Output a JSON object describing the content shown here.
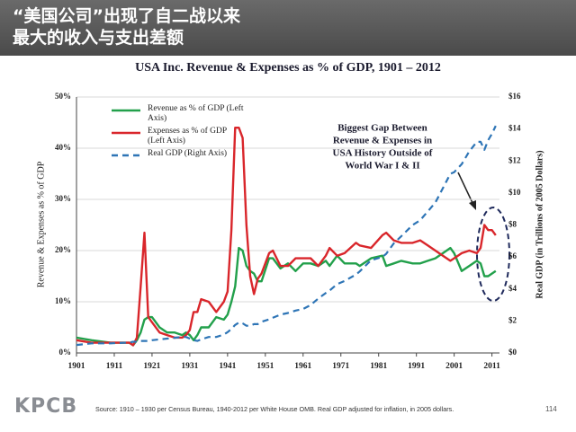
{
  "header": {
    "title_lines": [
      "“美国公司”出现了自二战以来",
      "最大的收入与支出差额"
    ]
  },
  "chart_data": {
    "type": "line",
    "title": "USA Inc. Revenue & Expenses as % of GDP, 1901 – 2012",
    "y_label": "Revenue & Expenses as % of GDP",
    "y2_label": "Real GDP (in Trillions of 2005 Dollars)",
    "annotation_lines": [
      "Biggest Gap Between",
      "Revenue & Expenses in",
      "USA History Outside of",
      "World War I & II"
    ],
    "x": [
      1901,
      1905,
      1910,
      1915,
      1916,
      1917,
      1918,
      1919,
      1920,
      1921,
      1923,
      1925,
      1927,
      1929,
      1930,
      1931,
      1932,
      1933,
      1934,
      1936,
      1938,
      1940,
      1941,
      1942,
      1943,
      1944,
      1945,
      1946,
      1947,
      1948,
      1949,
      1950,
      1952,
      1953,
      1955,
      1957,
      1959,
      1961,
      1963,
      1965,
      1967,
      1968,
      1970,
      1972,
      1975,
      1976,
      1979,
      1982,
      1983,
      1985,
      1987,
      1990,
      1992,
      1994,
      1996,
      1998,
      2000,
      2001,
      2003,
      2005,
      2007,
      2008,
      2009,
      2010,
      2011,
      2012
    ],
    "series": [
      {
        "name": "Revenue as % of GDP (Left Axis)",
        "color": "#22a04b",
        "axis": "y",
        "dashed": false,
        "values": [
          3,
          2.5,
          2,
          2,
          1.5,
          2.5,
          4,
          6.5,
          7,
          7,
          5,
          4,
          4,
          3.5,
          4,
          3.5,
          2.5,
          3.5,
          5,
          5,
          7,
          6.5,
          7.5,
          10,
          13,
          20.5,
          20,
          17,
          16,
          15.5,
          14,
          14,
          18.5,
          18.5,
          16.5,
          17.5,
          16,
          17.5,
          17.5,
          17,
          18,
          17,
          19,
          17.5,
          17.5,
          17,
          18.5,
          19,
          17,
          17.5,
          18,
          17.5,
          17.5,
          18,
          18.5,
          19.5,
          20.5,
          19.5,
          16,
          17,
          18,
          17.5,
          15,
          15,
          15.5,
          16
        ]
      },
      {
        "name": "Expenses as % of GDP (Left Axis)",
        "color": "#d9262b",
        "axis": "y",
        "dashed": false,
        "values": [
          2.5,
          2,
          2,
          2,
          1.5,
          3,
          13,
          23.5,
          7,
          6,
          4,
          3.5,
          3,
          3,
          3.5,
          4.5,
          8,
          8,
          10.5,
          10,
          8,
          10,
          12,
          24,
          44,
          44,
          42,
          25,
          15,
          11.5,
          14.5,
          15.5,
          19.5,
          20,
          17,
          17,
          18.5,
          18.5,
          18.5,
          17,
          19,
          20.5,
          19,
          19.5,
          21.5,
          21,
          20.5,
          23,
          23.5,
          22,
          21.5,
          21.5,
          22,
          21,
          20,
          19,
          18,
          18.5,
          19.5,
          20,
          19.5,
          20.5,
          25,
          24,
          24,
          23
        ]
      },
      {
        "name": "Real GDP (Right Axis)",
        "color": "#2e75b6",
        "axis": "y2",
        "dashed": true,
        "values": [
          0.5,
          0.6,
          0.6,
          0.65,
          0.7,
          0.7,
          0.75,
          0.75,
          0.75,
          0.8,
          0.85,
          0.9,
          0.95,
          1.0,
          1.0,
          0.9,
          0.8,
          0.75,
          0.85,
          1.0,
          1.0,
          1.15,
          1.3,
          1.5,
          1.75,
          1.9,
          1.85,
          1.7,
          1.7,
          1.8,
          1.8,
          1.95,
          2.1,
          2.2,
          2.4,
          2.5,
          2.65,
          2.75,
          3.0,
          3.4,
          3.75,
          3.9,
          4.3,
          4.5,
          4.9,
          5.1,
          5.8,
          6.0,
          6.2,
          6.85,
          7.3,
          8.0,
          8.3,
          8.85,
          9.4,
          10.3,
          11.2,
          11.3,
          11.8,
          12.6,
          13.2,
          13.2,
          12.7,
          13.3,
          13.7,
          14.2
        ]
      }
    ],
    "xlim": [
      1901,
      2013
    ],
    "xticks": [
      1901,
      1911,
      1921,
      1931,
      1941,
      1951,
      1961,
      1971,
      1981,
      1991,
      2001,
      2011
    ],
    "ylim": [
      0,
      50
    ],
    "yticks": [
      {
        "value": 0,
        "label": "0%"
      },
      {
        "value": 10,
        "label": "10%"
      },
      {
        "value": 20,
        "label": "20%"
      },
      {
        "value": 30,
        "label": "30%"
      },
      {
        "value": 40,
        "label": "40%"
      },
      {
        "value": 50,
        "label": "50%"
      }
    ],
    "y2lim": [
      0,
      16
    ],
    "y2ticks": [
      {
        "value": 0,
        "label": "$0"
      },
      {
        "value": 2,
        "label": "$2"
      },
      {
        "value": 4,
        "label": "$4"
      },
      {
        "value": 6,
        "label": "$6"
      },
      {
        "value": 8,
        "label": "$8"
      },
      {
        "value": 10,
        "label": "$10"
      },
      {
        "value": 12,
        "label": "$12"
      },
      {
        "value": 14,
        "label": "$14"
      },
      {
        "value": 16,
        "label": "$16"
      }
    ],
    "grid": true
  },
  "footer": {
    "logo": "KPCB",
    "source": "Source: 1910 – 1930 per Census Bureau, 1940-2012 per White House OMB. Real GDP adjusted for inflation, in 2005 dollars.",
    "page": 114
  }
}
